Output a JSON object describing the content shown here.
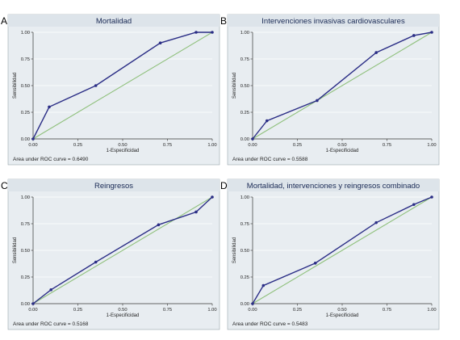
{
  "colors": {
    "background": "#e8edf1",
    "title_bar": "#dde4ea",
    "roc_line": "#2b2e86",
    "reference_line": "#8fc07c",
    "grid": "#ffffff"
  },
  "chart_data": [
    {
      "type": "line",
      "letter": "A",
      "title": "Mortalidad",
      "xlabel": "1-Especificidad",
      "ylabel": "Sensibilidad",
      "xlim": [
        0,
        1
      ],
      "ylim": [
        0,
        1
      ],
      "x_ticks": [
        "0.00",
        "0.25",
        "0.50",
        "0.75",
        "1.00"
      ],
      "y_ticks": [
        "0.00",
        "0.25",
        "0.50",
        "0.75",
        "1.00"
      ],
      "grid": true,
      "auc_text": "Area under ROC curve = 0.6490",
      "roc": {
        "x": [
          0,
          0.09,
          0.35,
          0.71,
          0.91,
          1.0
        ],
        "y": [
          0,
          0.3,
          0.5,
          0.9,
          1.0,
          1.0
        ]
      },
      "reference": {
        "x": [
          0,
          1
        ],
        "y": [
          0,
          1
        ]
      }
    },
    {
      "type": "line",
      "letter": "B",
      "title": "Intervenciones invasivas cardiovasculares",
      "xlabel": "1-Especificidad",
      "ylabel": "Sensibilidad",
      "xlim": [
        0,
        1
      ],
      "ylim": [
        0,
        1
      ],
      "x_ticks": [
        "0.00",
        "0.25",
        "0.50",
        "0.75",
        "1.00"
      ],
      "y_ticks": [
        "0.00",
        "0.25",
        "0.50",
        "0.75",
        "1.00"
      ],
      "grid": true,
      "auc_text": "Area under ROC curve = 0.5588",
      "roc": {
        "x": [
          0,
          0.08,
          0.36,
          0.69,
          0.9,
          1.0
        ],
        "y": [
          0,
          0.17,
          0.36,
          0.81,
          0.97,
          1.0
        ]
      },
      "reference": {
        "x": [
          0,
          1
        ],
        "y": [
          0,
          1
        ]
      }
    },
    {
      "type": "line",
      "letter": "C",
      "title": "Reingresos",
      "xlabel": "1-Especificidad",
      "ylabel": "Sensibilidad",
      "xlim": [
        0,
        1
      ],
      "ylim": [
        0,
        1
      ],
      "x_ticks": [
        "0.00",
        "0.25",
        "0.50",
        "0.75",
        "1.00"
      ],
      "y_ticks": [
        "0.00",
        "0.25",
        "0.50",
        "0.75",
        "1.00"
      ],
      "grid": true,
      "auc_text": "Area under ROC curve = 0.5168",
      "roc": {
        "x": [
          0,
          0.1,
          0.35,
          0.7,
          0.91,
          1.0
        ],
        "y": [
          0,
          0.13,
          0.39,
          0.74,
          0.86,
          1.0
        ]
      },
      "reference": {
        "x": [
          0,
          1
        ],
        "y": [
          0,
          1
        ]
      }
    },
    {
      "type": "line",
      "letter": "D",
      "title": "Mortalidad, intervenciones y reingresos combinado",
      "xlabel": "1-Especificidad",
      "ylabel": "Sensibilidad",
      "xlim": [
        0,
        1
      ],
      "ylim": [
        0,
        1
      ],
      "x_ticks": [
        "0.00",
        "0.25",
        "0.50",
        "0.75",
        "1.00"
      ],
      "y_ticks": [
        "0.00",
        "0.25",
        "0.50",
        "0.75",
        "1.00"
      ],
      "grid": true,
      "auc_text": "Area under ROC curve = 0.5483",
      "roc": {
        "x": [
          0,
          0.06,
          0.35,
          0.69,
          0.9,
          1.0
        ],
        "y": [
          0,
          0.17,
          0.38,
          0.76,
          0.93,
          1.0
        ]
      },
      "reference": {
        "x": [
          0,
          1
        ],
        "y": [
          0,
          1
        ]
      }
    }
  ]
}
